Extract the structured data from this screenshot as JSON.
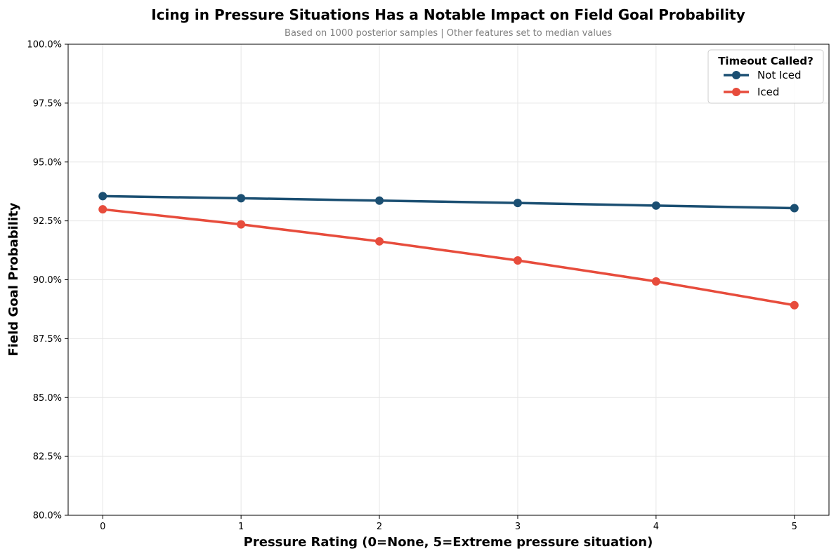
{
  "chart_data": {
    "type": "line",
    "title": "Icing in Pressure Situations Has a Notable Impact on Field Goal Probability",
    "subtitle": "Based on 1000 posterior samples | Other features set to median values",
    "xlabel": "Pressure Rating (0=None, 5=Extreme pressure situation)",
    "ylabel": "Field Goal Probability",
    "x": [
      0,
      1,
      2,
      3,
      4,
      5
    ],
    "x_tick_labels": [
      "0",
      "1",
      "2",
      "3",
      "4",
      "5"
    ],
    "xlim": [
      -0.25,
      5.25
    ],
    "ylim": [
      0.8,
      1.0
    ],
    "y_ticks": [
      0.8,
      0.825,
      0.85,
      0.875,
      0.9,
      0.925,
      0.95,
      0.975,
      1.0
    ],
    "y_tick_labels": [
      "80.0%",
      "82.5%",
      "85.0%",
      "87.5%",
      "90.0%",
      "92.5%",
      "95.0%",
      "97.5%",
      "100.0%"
    ],
    "grid": true,
    "legend": {
      "title": "Timeout Called?",
      "placement": "top-right"
    },
    "series": [
      {
        "name": "Not Iced",
        "color": "#1b4f72",
        "values": [
          0.9355,
          0.9346,
          0.9336,
          0.9326,
          0.9315,
          0.9304
        ]
      },
      {
        "name": "Iced",
        "color": "#e74c3c",
        "values": [
          0.9299,
          0.9235,
          0.9163,
          0.9082,
          0.8993,
          0.8892
        ]
      }
    ]
  }
}
